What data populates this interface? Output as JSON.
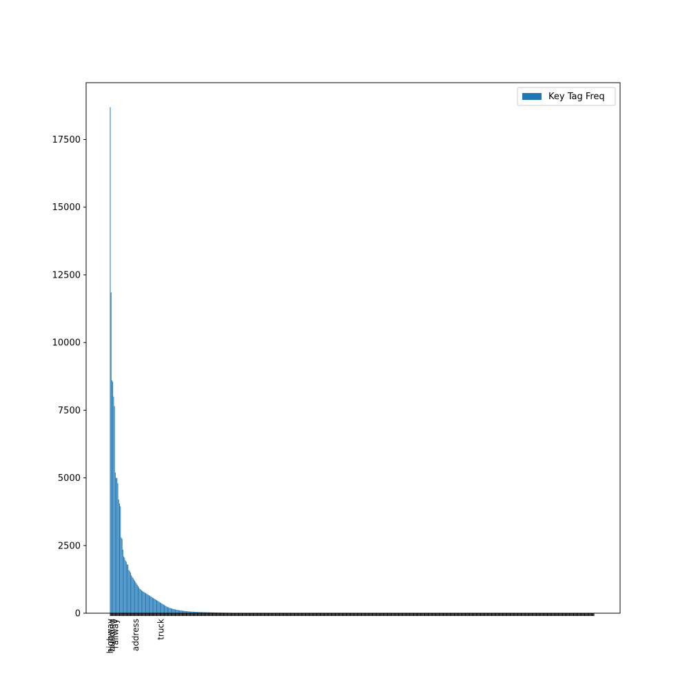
{
  "chart_data": {
    "type": "bar",
    "title": "",
    "xlabel": "",
    "ylabel": "",
    "ylim": [
      0,
      19600
    ],
    "yticks": [
      0,
      2500,
      5000,
      7500,
      10000,
      12500,
      15000,
      17500
    ],
    "grid": false,
    "legend": {
      "position": "top-right",
      "entries": [
        "Key Tag Freq"
      ]
    },
    "bar_color": "#1f77b4",
    "series": [
      {
        "name": "Key Tag Freq",
        "values": [
          18700,
          11850,
          8600,
          8550,
          8000,
          7650,
          5200,
          5000,
          5000,
          4800,
          4200,
          4050,
          3950,
          2800,
          2750,
          2350,
          2100,
          2050,
          1950,
          1900,
          1800,
          1800,
          1600,
          1550,
          1500,
          1400,
          1350,
          1300,
          1250,
          1200,
          1150,
          1100,
          1050,
          1000,
          950,
          900,
          880,
          850,
          820,
          800,
          780,
          760,
          740,
          720,
          700,
          680,
          660,
          640,
          620,
          600,
          580,
          560,
          540,
          520,
          500,
          480,
          460,
          440,
          420,
          400,
          380,
          360,
          340,
          320,
          300,
          280,
          260,
          245,
          230,
          215,
          200,
          190,
          180,
          170,
          160,
          152,
          145,
          138,
          131,
          125,
          119,
          113,
          108,
          103,
          98,
          94,
          90,
          86,
          82,
          79,
          76,
          73,
          70,
          67,
          64,
          62,
          60,
          58,
          56,
          54,
          52,
          50,
          48,
          47,
          46,
          45,
          44,
          43,
          42,
          41,
          40,
          39,
          38,
          37,
          36,
          35,
          34,
          33,
          32,
          31,
          30,
          29,
          28,
          27,
          26,
          25,
          24,
          23,
          22,
          21,
          20,
          20,
          19,
          19,
          18,
          18,
          17,
          17,
          16,
          16,
          15,
          15,
          14,
          14,
          13,
          13,
          12,
          12,
          11,
          11,
          10,
          10,
          10,
          9,
          9,
          9,
          8,
          8,
          8,
          7,
          7,
          7,
          6,
          6,
          6,
          6,
          5,
          5,
          5,
          5,
          5,
          4,
          4,
          4,
          4,
          4,
          4,
          3,
          3,
          3,
          3,
          3,
          3,
          3,
          3,
          2,
          2,
          2,
          2,
          2,
          2,
          2,
          2,
          2,
          2,
          2,
          2,
          2,
          2,
          2,
          2,
          2,
          2,
          2,
          2,
          2,
          2,
          2,
          2,
          1,
          1,
          1,
          1,
          1,
          1,
          1,
          1,
          1,
          1,
          1,
          1,
          1,
          1,
          1,
          1,
          1,
          1,
          1,
          1,
          1,
          1,
          1,
          1,
          1,
          1,
          1,
          1,
          1,
          1,
          1,
          1,
          1,
          1,
          1,
          1,
          1,
          1,
          1,
          1,
          1,
          1,
          1,
          1,
          1,
          1,
          1,
          1,
          1,
          1,
          1,
          1,
          1,
          1,
          1,
          1,
          1,
          1,
          1,
          1,
          1,
          1,
          1,
          1,
          1,
          1,
          1,
          1,
          1,
          1,
          1,
          1,
          1,
          1,
          1,
          1,
          1,
          1,
          1,
          1,
          1,
          1,
          1,
          1,
          1,
          1,
          1,
          1,
          1,
          1,
          1,
          1,
          1,
          1,
          1,
          1,
          1,
          1,
          1,
          1,
          1,
          1,
          1,
          1,
          1,
          1,
          1,
          1,
          1,
          1,
          1,
          1,
          1,
          1,
          1,
          1,
          1,
          1,
          1,
          1,
          1,
          1,
          1,
          1,
          1,
          1,
          1,
          1,
          1,
          1,
          1,
          1,
          1,
          1,
          1,
          1,
          1,
          1,
          1,
          1,
          1,
          1,
          1,
          1,
          1,
          1,
          1,
          1,
          1,
          1,
          1,
          1,
          1,
          1,
          1,
          1,
          1,
          1,
          1,
          1,
          1,
          1,
          1,
          1,
          1,
          1,
          1,
          1,
          1,
          1,
          1,
          1,
          1,
          1,
          1,
          1,
          1,
          1,
          1,
          1,
          1,
          1,
          1,
          1,
          1,
          1,
          1,
          1,
          1,
          1,
          1,
          1,
          1,
          1,
          1,
          1,
          1,
          1,
          1,
          1,
          1,
          1,
          1,
          1,
          1,
          1,
          1,
          1,
          1,
          1,
          1,
          1,
          1,
          1,
          1,
          1,
          1,
          1,
          1,
          1,
          1,
          1,
          1,
          1,
          1,
          1,
          1,
          1,
          1,
          1,
          1,
          1,
          1,
          1,
          1,
          1,
          1,
          1,
          1,
          1,
          1,
          1,
          1,
          1,
          1,
          1,
          1,
          1,
          1,
          1,
          1,
          1,
          1,
          1,
          1,
          1,
          1,
          1,
          1,
          1,
          1,
          1,
          1,
          1,
          1,
          1,
          1,
          1,
          1,
          1,
          1,
          1,
          1,
          1,
          1,
          1,
          1,
          1,
          1,
          1,
          1,
          1,
          1,
          1,
          1,
          1,
          1,
          1,
          1,
          1,
          1,
          1,
          1,
          1,
          1,
          1,
          1,
          1,
          1,
          1,
          1,
          1,
          1,
          1,
          1,
          1,
          1,
          1,
          1,
          1,
          1,
          1,
          1,
          1,
          1,
          1,
          1,
          1,
          1,
          1,
          1,
          1,
          1,
          1,
          1,
          1,
          1,
          1,
          1,
          1,
          1,
          1,
          1,
          1,
          1,
          1,
          1,
          1,
          1,
          1,
          1,
          1,
          1,
          1,
          1,
          1,
          1,
          1,
          1,
          1,
          1,
          1,
          1,
          1,
          1,
          1,
          1,
          1,
          1,
          1,
          1,
          1,
          1,
          1
        ]
      }
    ],
    "categories_visible": [
      "highway",
      "building",
      "railway",
      "address",
      "truck"
    ]
  }
}
